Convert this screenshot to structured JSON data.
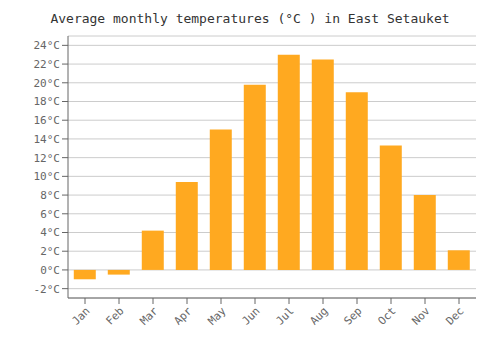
{
  "chart_data": {
    "type": "bar",
    "title": "Average monthly temperatures (°C ) in East Setauket",
    "categories": [
      "Jan",
      "Feb",
      "Mar",
      "Apr",
      "May",
      "Jun",
      "Jul",
      "Aug",
      "Sep",
      "Oct",
      "Nov",
      "Dec"
    ],
    "values": [
      -1.0,
      -0.5,
      4.2,
      9.4,
      15.0,
      19.8,
      23.0,
      22.5,
      19.0,
      13.3,
      8.0,
      2.1
    ],
    "color": "#FFA920",
    "ylim": [
      -3,
      25
    ],
    "yticks": [
      {
        "value": -2,
        "label": "-2°C"
      },
      {
        "value": 0,
        "label": "0°C"
      },
      {
        "value": 2,
        "label": "2°C"
      },
      {
        "value": 4,
        "label": "4°C"
      },
      {
        "value": 6,
        "label": "6°C"
      },
      {
        "value": 8,
        "label": "8°C"
      },
      {
        "value": 10,
        "label": "10°C"
      },
      {
        "value": 12,
        "label": "12°C"
      },
      {
        "value": 14,
        "label": "14°C"
      },
      {
        "value": 16,
        "label": "16°C"
      },
      {
        "value": 18,
        "label": "18°C"
      },
      {
        "value": 20,
        "label": "20°C"
      },
      {
        "value": 22,
        "label": "22°C"
      },
      {
        "value": 24,
        "label": "24°C"
      }
    ],
    "grid": true
  }
}
